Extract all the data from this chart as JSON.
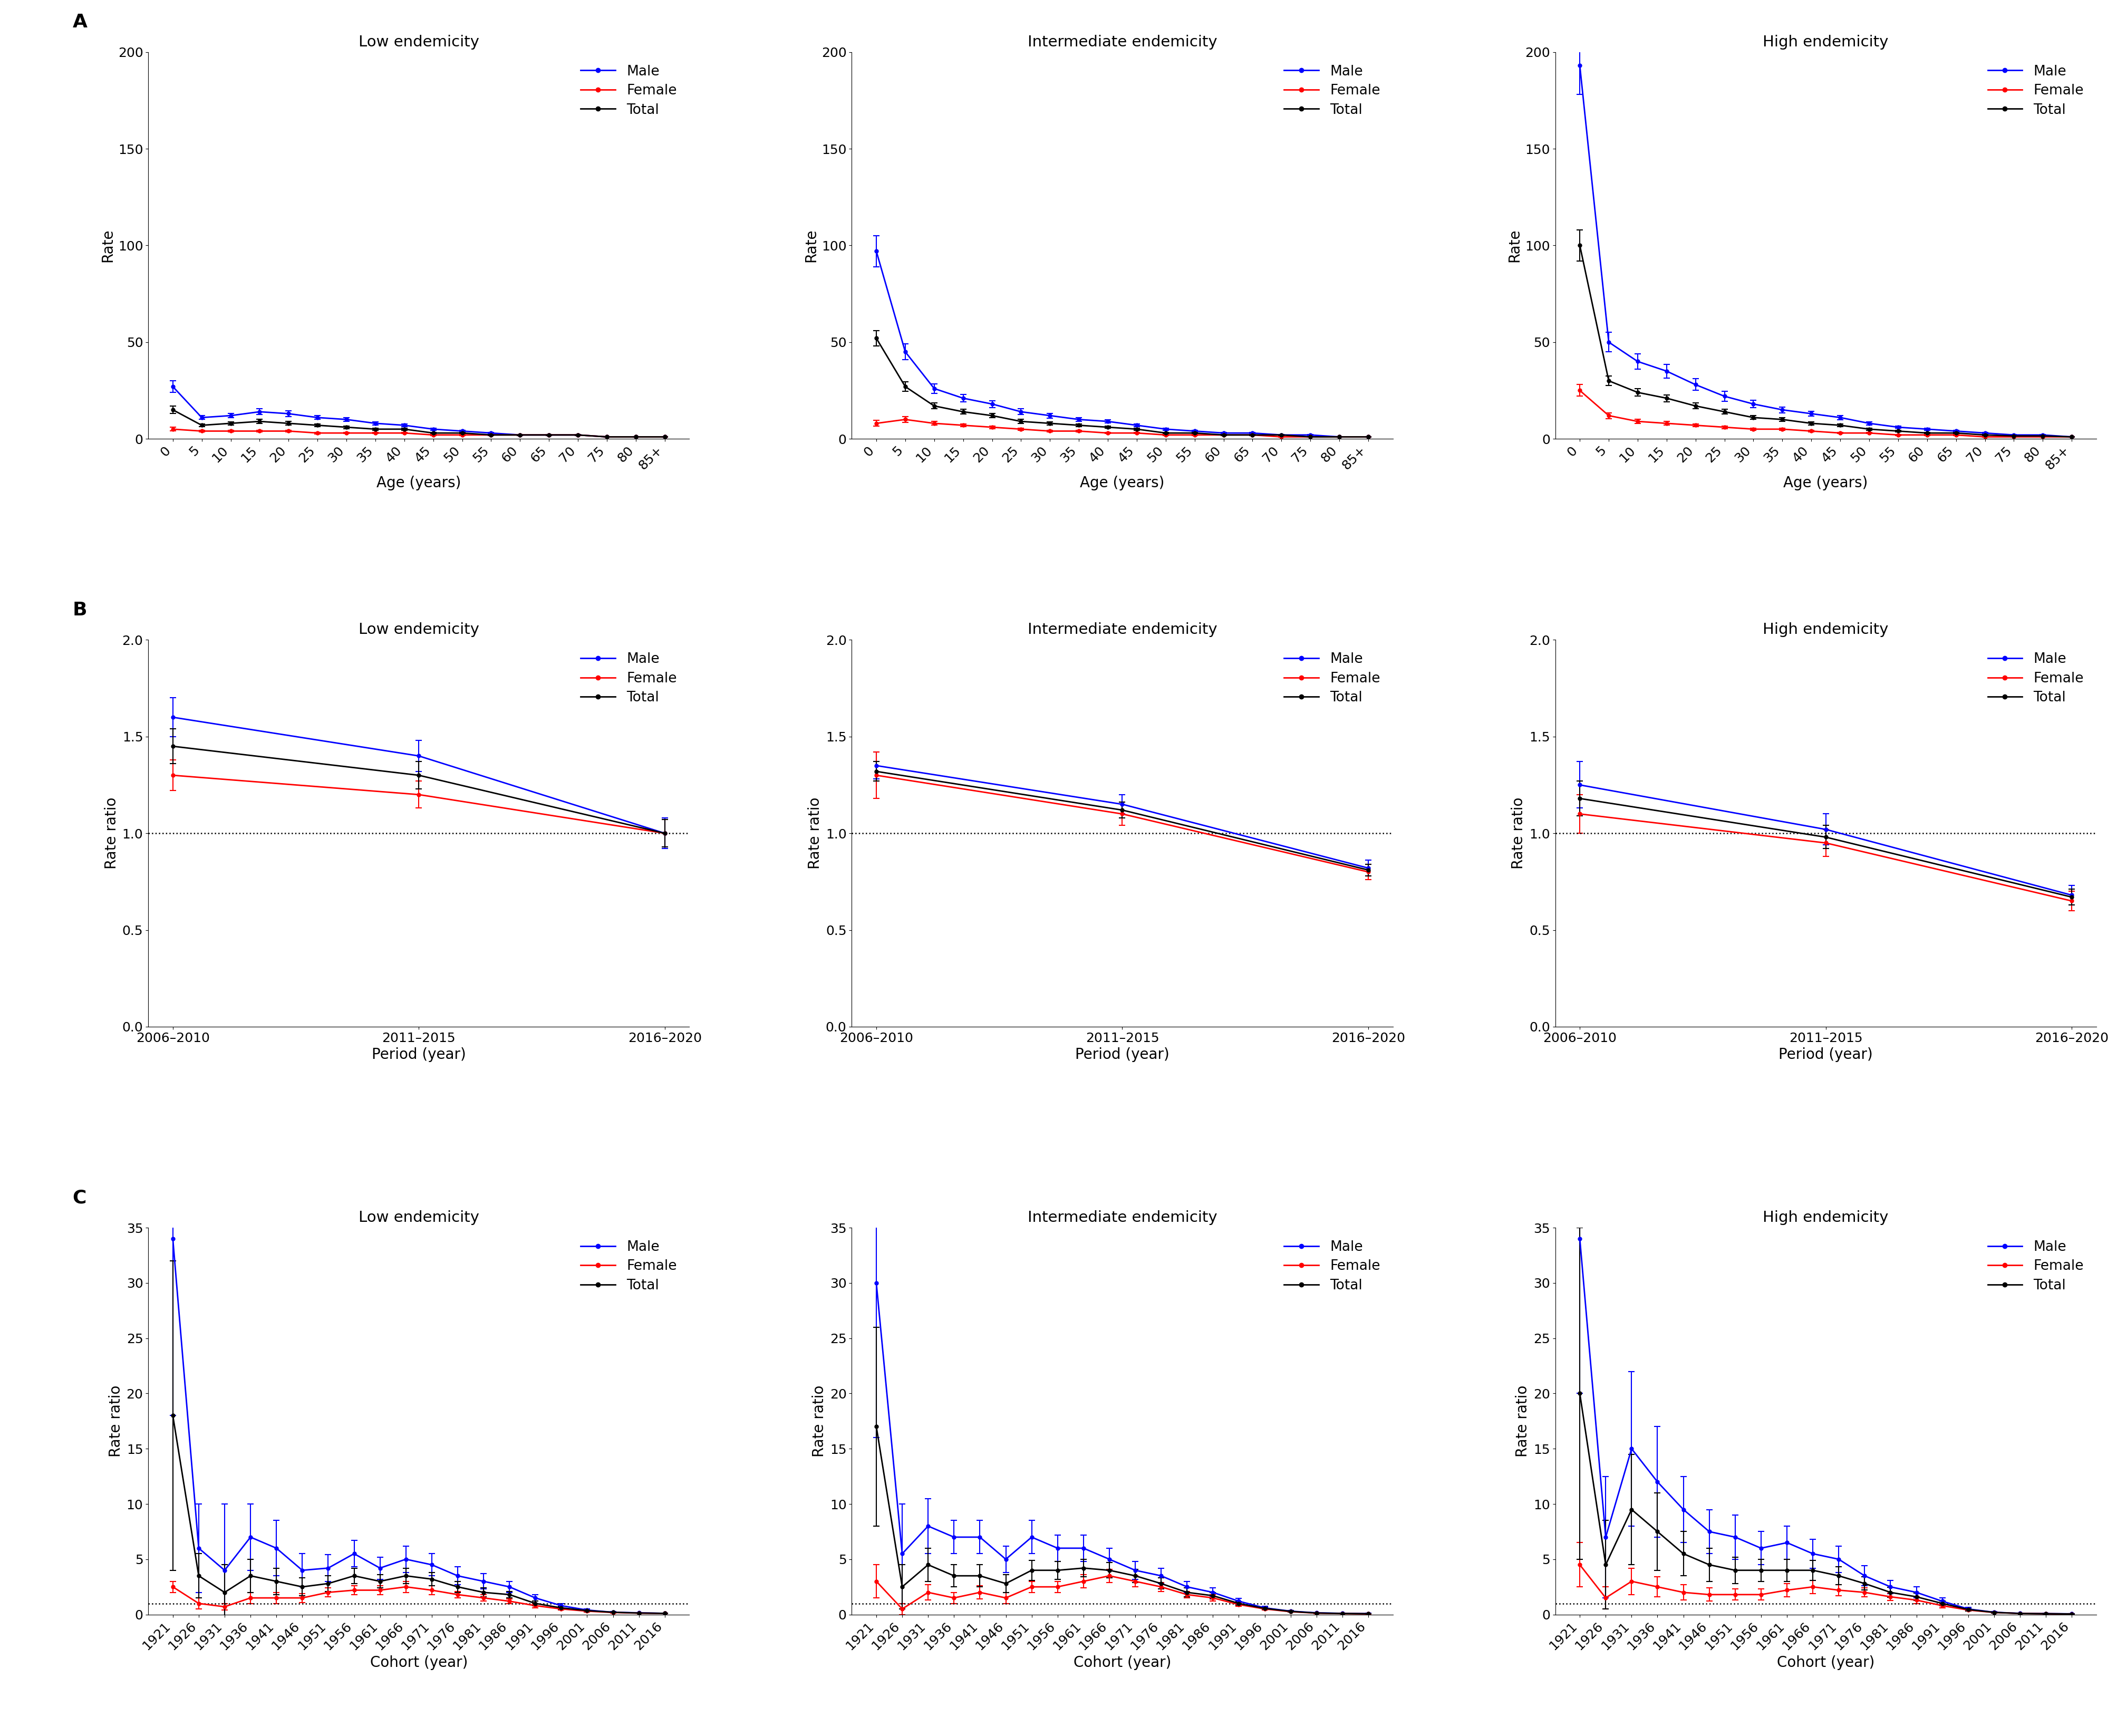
{
  "row_labels": [
    "A",
    "B",
    "C"
  ],
  "col_titles": [
    "Low endemicity",
    "Intermediate endemicity",
    "High endemicity"
  ],
  "colors": {
    "male": "#0000FF",
    "female": "#FF0000",
    "total": "#000000"
  },
  "row_A": {
    "xlabel": "Age (years)",
    "ylabel": "Rate",
    "ylim": [
      0,
      200
    ],
    "yticks": [
      0,
      50,
      100,
      150,
      200
    ],
    "age_labels": [
      "0",
      "5",
      "10",
      "15",
      "20",
      "25",
      "30",
      "35",
      "40",
      "45",
      "50",
      "55",
      "60",
      "65",
      "70",
      "75",
      "80",
      "85+"
    ],
    "low": {
      "male": [
        27,
        11,
        12,
        14,
        13,
        11,
        10,
        8,
        7,
        5,
        4,
        3,
        2,
        2,
        2,
        1,
        1,
        1
      ],
      "female": [
        5,
        4,
        4,
        4,
        4,
        3,
        3,
        3,
        3,
        2,
        2,
        2,
        2,
        2,
        2,
        1,
        1,
        1
      ],
      "total": [
        15,
        7,
        8,
        9,
        8,
        7,
        6,
        5,
        5,
        3,
        3,
        2,
        2,
        2,
        2,
        1,
        1,
        1
      ],
      "male_err": [
        3,
        1,
        1,
        1.5,
        1.5,
        1,
        1,
        0.8,
        0.7,
        0.5,
        0.4,
        0.3,
        0.2,
        0.2,
        0.2,
        0.1,
        0.1,
        0.1
      ],
      "female_err": [
        1,
        0.5,
        0.5,
        0.5,
        0.5,
        0.4,
        0.3,
        0.3,
        0.3,
        0.2,
        0.2,
        0.2,
        0.2,
        0.2,
        0.2,
        0.1,
        0.1,
        0.1
      ],
      "total_err": [
        2,
        0.8,
        0.8,
        1,
        1,
        0.8,
        0.7,
        0.6,
        0.5,
        0.4,
        0.3,
        0.2,
        0.2,
        0.2,
        0.2,
        0.1,
        0.1,
        0.1
      ]
    },
    "intermediate": {
      "male": [
        97,
        45,
        26,
        21,
        18,
        14,
        12,
        10,
        9,
        7,
        5,
        4,
        3,
        3,
        2,
        2,
        1,
        1
      ],
      "female": [
        8,
        10,
        8,
        7,
        6,
        5,
        4,
        4,
        3,
        3,
        2,
        2,
        2,
        2,
        1,
        1,
        1,
        1
      ],
      "total": [
        52,
        27,
        17,
        14,
        12,
        9,
        8,
        7,
        6,
        5,
        3,
        3,
        2,
        2,
        2,
        1,
        1,
        1
      ],
      "male_err": [
        8,
        4,
        2.5,
        2,
        1.8,
        1.5,
        1.2,
        1,
        0.9,
        0.7,
        0.5,
        0.4,
        0.3,
        0.3,
        0.2,
        0.2,
        0.1,
        0.1
      ],
      "female_err": [
        1.5,
        1.5,
        1,
        0.8,
        0.7,
        0.6,
        0.5,
        0.4,
        0.3,
        0.3,
        0.2,
        0.2,
        0.2,
        0.2,
        0.15,
        0.1,
        0.1,
        0.1
      ],
      "total_err": [
        4,
        2.5,
        1.5,
        1.2,
        1.1,
        1,
        0.8,
        0.7,
        0.6,
        0.5,
        0.3,
        0.3,
        0.2,
        0.2,
        0.2,
        0.15,
        0.1,
        0.1
      ]
    },
    "high": {
      "male": [
        193,
        50,
        40,
        35,
        28,
        22,
        18,
        15,
        13,
        11,
        8,
        6,
        5,
        4,
        3,
        2,
        2,
        1
      ],
      "female": [
        25,
        12,
        9,
        8,
        7,
        6,
        5,
        5,
        4,
        3,
        3,
        2,
        2,
        2,
        1,
        1,
        1,
        1
      ],
      "total": [
        100,
        30,
        24,
        21,
        17,
        14,
        11,
        10,
        8,
        7,
        5,
        4,
        3,
        3,
        2,
        1.5,
        1.5,
        1
      ],
      "male_err": [
        15,
        5,
        4,
        3.5,
        3,
        2.5,
        2,
        1.5,
        1.3,
        1.1,
        0.8,
        0.6,
        0.5,
        0.4,
        0.3,
        0.2,
        0.2,
        0.1
      ],
      "female_err": [
        3,
        1.5,
        1,
        0.9,
        0.8,
        0.7,
        0.6,
        0.5,
        0.4,
        0.3,
        0.3,
        0.2,
        0.2,
        0.2,
        0.1,
        0.1,
        0.1,
        0.1
      ],
      "total_err": [
        8,
        2.5,
        2,
        1.8,
        1.5,
        1.2,
        1,
        0.9,
        0.8,
        0.7,
        0.5,
        0.4,
        0.3,
        0.3,
        0.2,
        0.15,
        0.15,
        0.1
      ]
    }
  },
  "row_B": {
    "xlabel": "Period (year)",
    "ylabel": "Rate ratio",
    "ylim": [
      0,
      2.0
    ],
    "yticks": [
      0.0,
      0.5,
      1.0,
      1.5,
      2.0
    ],
    "period_labels": [
      "2006–2010",
      "2011–2015",
      "2016–2020"
    ],
    "low": {
      "male": [
        1.6,
        1.4,
        1.0
      ],
      "female": [
        1.3,
        1.2,
        1.0
      ],
      "total": [
        1.45,
        1.3,
        1.0
      ],
      "male_err": [
        0.1,
        0.08,
        0.08
      ],
      "female_err": [
        0.08,
        0.07,
        0.07
      ],
      "total_err": [
        0.09,
        0.07,
        0.07
      ]
    },
    "intermediate": {
      "male": [
        1.35,
        1.15,
        0.82
      ],
      "female": [
        1.3,
        1.1,
        0.8
      ],
      "total": [
        1.32,
        1.12,
        0.81
      ],
      "male_err": [
        0.07,
        0.05,
        0.04
      ],
      "female_err": [
        0.12,
        0.06,
        0.04
      ],
      "total_err": [
        0.05,
        0.04,
        0.03
      ]
    },
    "high": {
      "male": [
        1.25,
        1.02,
        0.68
      ],
      "female": [
        1.1,
        0.95,
        0.65
      ],
      "total": [
        1.18,
        0.98,
        0.67
      ],
      "male_err": [
        0.12,
        0.08,
        0.05
      ],
      "female_err": [
        0.1,
        0.07,
        0.05
      ],
      "total_err": [
        0.09,
        0.06,
        0.04
      ]
    }
  },
  "row_C": {
    "xlabel": "Cohort (year)",
    "ylabel": "Rate ratio",
    "ylim": [
      0,
      35
    ],
    "yticks": [
      0,
      5,
      10,
      15,
      20,
      25,
      30,
      35
    ],
    "cohort_labels": [
      "1921",
      "1926",
      "1931",
      "1936",
      "1941",
      "1946",
      "1951",
      "1956",
      "1961",
      "1966",
      "1971",
      "1976",
      "1981",
      "1986",
      "1991",
      "1996",
      "2001",
      "2006",
      "2011",
      "2016"
    ],
    "low": {
      "male": [
        34,
        6.0,
        4.0,
        7.0,
        6.0,
        4.0,
        4.2,
        5.5,
        4.2,
        5.0,
        4.5,
        3.5,
        3.0,
        2.5,
        1.5,
        0.8,
        0.4,
        0.2,
        0.15,
        0.1
      ],
      "female": [
        2.5,
        1.0,
        0.7,
        1.5,
        1.5,
        1.5,
        2.0,
        2.2,
        2.2,
        2.5,
        2.2,
        1.8,
        1.5,
        1.2,
        0.8,
        0.5,
        0.3,
        0.18,
        0.12,
        0.1
      ],
      "total": [
        18,
        3.5,
        2.0,
        3.5,
        3.0,
        2.5,
        2.8,
        3.5,
        3.0,
        3.5,
        3.2,
        2.5,
        2.0,
        1.8,
        1.0,
        0.6,
        0.35,
        0.2,
        0.13,
        0.1
      ],
      "male_err": [
        16,
        4,
        6,
        3,
        2.5,
        1.5,
        1.2,
        1.2,
        1,
        1.2,
        1,
        0.8,
        0.7,
        0.5,
        0.3,
        0.2,
        0.1,
        0.05,
        0.03,
        0.02
      ],
      "female_err": [
        0.5,
        0.5,
        0.3,
        0.5,
        0.5,
        0.4,
        0.4,
        0.4,
        0.4,
        0.5,
        0.4,
        0.3,
        0.3,
        0.2,
        0.2,
        0.1,
        0.07,
        0.04,
        0.02,
        0.02
      ],
      "total_err": [
        14,
        2,
        2.5,
        1.5,
        1.2,
        0.8,
        0.7,
        0.7,
        0.6,
        0.7,
        0.6,
        0.5,
        0.4,
        0.3,
        0.2,
        0.15,
        0.08,
        0.04,
        0.03,
        0.02
      ]
    },
    "intermediate": {
      "male": [
        30,
        5.5,
        8.0,
        7.0,
        7.0,
        5.0,
        7.0,
        6.0,
        6.0,
        5.0,
        4.0,
        3.5,
        2.5,
        2.0,
        1.2,
        0.6,
        0.3,
        0.15,
        0.1,
        0.08
      ],
      "female": [
        3.0,
        0.5,
        2.0,
        1.5,
        2.0,
        1.5,
        2.5,
        2.5,
        3.0,
        3.5,
        3.0,
        2.5,
        1.8,
        1.5,
        0.9,
        0.5,
        0.25,
        0.12,
        0.08,
        0.06
      ],
      "total": [
        17,
        2.5,
        4.5,
        3.5,
        3.5,
        2.8,
        4.0,
        4.0,
        4.2,
        4.0,
        3.5,
        2.8,
        2.0,
        1.7,
        1.0,
        0.55,
        0.28,
        0.13,
        0.09,
        0.07
      ],
      "male_err": [
        14,
        4.5,
        2.5,
        1.5,
        1.5,
        1.2,
        1.5,
        1.2,
        1.2,
        1.0,
        0.8,
        0.7,
        0.5,
        0.4,
        0.25,
        0.15,
        0.07,
        0.03,
        0.02,
        0.02
      ],
      "female_err": [
        1.5,
        0.5,
        0.7,
        0.5,
        0.6,
        0.5,
        0.5,
        0.5,
        0.6,
        0.6,
        0.5,
        0.4,
        0.3,
        0.3,
        0.18,
        0.1,
        0.05,
        0.03,
        0.02,
        0.01
      ],
      "total_err": [
        9,
        2,
        1.5,
        1.0,
        1.0,
        0.8,
        0.9,
        0.8,
        0.8,
        0.7,
        0.6,
        0.5,
        0.4,
        0.3,
        0.18,
        0.1,
        0.06,
        0.03,
        0.02,
        0.01
      ]
    },
    "high": {
      "male": [
        34,
        7.0,
        15.0,
        12.0,
        9.5,
        7.5,
        7.0,
        6.0,
        6.5,
        5.5,
        5.0,
        3.5,
        2.5,
        2.0,
        1.2,
        0.5,
        0.2,
        0.1,
        0.08,
        0.06
      ],
      "female": [
        4.5,
        1.5,
        3.0,
        2.5,
        2.0,
        1.8,
        1.8,
        1.8,
        2.2,
        2.5,
        2.2,
        2.0,
        1.6,
        1.3,
        0.8,
        0.4,
        0.18,
        0.09,
        0.07,
        0.05
      ],
      "total": [
        20,
        4.5,
        9.5,
        7.5,
        5.5,
        4.5,
        4.0,
        4.0,
        4.0,
        4.0,
        3.5,
        2.8,
        2.0,
        1.6,
        1.0,
        0.45,
        0.19,
        0.09,
        0.07,
        0.05
      ],
      "male_err": [
        14,
        5.5,
        7,
        5,
        3,
        2,
        2,
        1.5,
        1.5,
        1.3,
        1.2,
        0.9,
        0.6,
        0.5,
        0.3,
        0.15,
        0.06,
        0.03,
        0.02,
        0.01
      ],
      "female_err": [
        2,
        1.0,
        1.2,
        0.9,
        0.7,
        0.6,
        0.5,
        0.5,
        0.6,
        0.6,
        0.5,
        0.4,
        0.35,
        0.3,
        0.18,
        0.1,
        0.05,
        0.02,
        0.02,
        0.01
      ],
      "total_err": [
        15,
        4,
        5,
        3.5,
        2,
        1.5,
        1.2,
        1.0,
        1.0,
        0.9,
        0.8,
        0.6,
        0.45,
        0.35,
        0.2,
        0.12,
        0.05,
        0.02,
        0.02,
        0.01
      ]
    }
  },
  "background_color": "#ffffff",
  "tick_font_size": 18,
  "label_font_size": 20,
  "title_font_size": 21,
  "legend_font_size": 19,
  "rowlabel_font_size": 26
}
